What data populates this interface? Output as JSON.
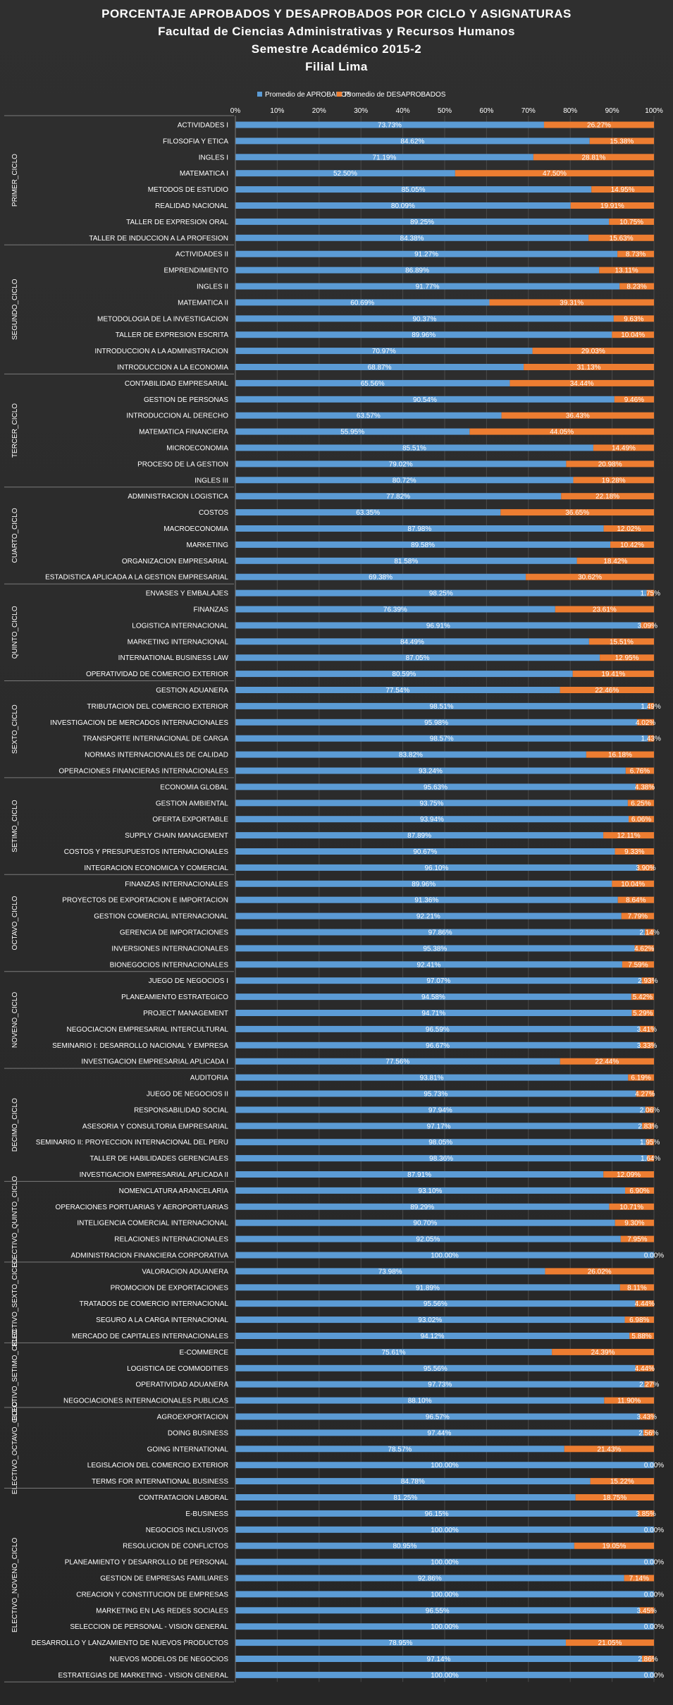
{
  "title_lines": [
    "PORCENTAJE APROBADOS Y DESAPROBADOS POR CICLO Y ASIGNATURAS",
    "Facultad  de Ciencias  Administrativas  y Recursos  Humanos",
    "Semestre  Académico  2015-2",
    "Filial  Lima"
  ],
  "colors": {
    "aprobados": "#5b9bd5",
    "desaprobados": "#ed7d31",
    "background": "#2b2b2b",
    "grid": "#4a4a4a",
    "text": "#ffffff"
  },
  "chart_data": {
    "type": "bar",
    "orientation": "horizontal",
    "stacked": true,
    "legend_position": "top",
    "series": [
      {
        "name": "Promedio de APROBADOS"
      },
      {
        "name": "Promedio de DESAPROBADOS"
      }
    ],
    "xlim": [
      0,
      100
    ],
    "x_ticks": [
      "0%",
      "10%",
      "20%",
      "30%",
      "40%",
      "50%",
      "60%",
      "70%",
      "80%",
      "90%",
      "100%"
    ],
    "grid": true,
    "groups": [
      {
        "name": "PRIMER_CICLO",
        "items": [
          {
            "label": "ACTIVIDADES I",
            "aprobados": 73.73,
            "desaprobados": 26.27
          },
          {
            "label": "FILOSOFIA Y ETICA",
            "aprobados": 84.62,
            "desaprobados": 15.38
          },
          {
            "label": "INGLES I",
            "aprobados": 71.19,
            "desaprobados": 28.81
          },
          {
            "label": "MATEMATICA I",
            "aprobados": 52.5,
            "desaprobados": 47.5
          },
          {
            "label": "METODOS DE ESTUDIO",
            "aprobados": 85.05,
            "desaprobados": 14.95
          },
          {
            "label": "REALIDAD NACIONAL",
            "aprobados": 80.09,
            "desaprobados": 19.91
          },
          {
            "label": "TALLER DE EXPRESION ORAL",
            "aprobados": 89.25,
            "desaprobados": 10.75
          },
          {
            "label": "TALLER DE INDUCCION A LA PROFESION",
            "aprobados": 84.38,
            "desaprobados": 15.63
          }
        ]
      },
      {
        "name": "SEGUNDO_CICLO",
        "items": [
          {
            "label": "ACTIVIDADES II",
            "aprobados": 91.27,
            "desaprobados": 8.73
          },
          {
            "label": "EMPRENDIMIENTO",
            "aprobados": 86.89,
            "desaprobados": 13.11
          },
          {
            "label": "INGLES II",
            "aprobados": 91.77,
            "desaprobados": 8.23
          },
          {
            "label": "MATEMATICA II",
            "aprobados": 60.69,
            "desaprobados": 39.31
          },
          {
            "label": "METODOLOGIA DE LA INVESTIGACION",
            "aprobados": 90.37,
            "desaprobados": 9.63
          },
          {
            "label": "TALLER DE EXPRESION ESCRITA",
            "aprobados": 89.96,
            "desaprobados": 10.04
          },
          {
            "label": "INTRODUCCION A LA ADMINISTRACION",
            "aprobados": 70.97,
            "desaprobados": 29.03
          },
          {
            "label": "INTRODUCCION A LA ECONOMIA",
            "aprobados": 68.87,
            "desaprobados": 31.13
          }
        ]
      },
      {
        "name": "TERCER_CICLO",
        "items": [
          {
            "label": "CONTABILIDAD EMPRESARIAL",
            "aprobados": 65.56,
            "desaprobados": 34.44
          },
          {
            "label": "GESTION DE PERSONAS",
            "aprobados": 90.54,
            "desaprobados": 9.46
          },
          {
            "label": "INTRODUCCION AL DERECHO",
            "aprobados": 63.57,
            "desaprobados": 36.43
          },
          {
            "label": "MATEMATICA FINANCIERA",
            "aprobados": 55.95,
            "desaprobados": 44.05
          },
          {
            "label": "MICROECONOMIA",
            "aprobados": 85.51,
            "desaprobados": 14.49
          },
          {
            "label": "PROCESO DE LA GESTION",
            "aprobados": 79.02,
            "desaprobados": 20.98
          },
          {
            "label": "INGLES III",
            "aprobados": 80.72,
            "desaprobados": 19.28
          }
        ]
      },
      {
        "name": "CUARTO_CICLO",
        "items": [
          {
            "label": "ADMINISTRACION LOGISTICA",
            "aprobados": 77.82,
            "desaprobados": 22.18
          },
          {
            "label": "COSTOS",
            "aprobados": 63.35,
            "desaprobados": 36.65
          },
          {
            "label": "MACROECONOMIA",
            "aprobados": 87.98,
            "desaprobados": 12.02
          },
          {
            "label": "MARKETING",
            "aprobados": 89.58,
            "desaprobados": 10.42
          },
          {
            "label": "ORGANIZACION EMPRESARIAL",
            "aprobados": 81.58,
            "desaprobados": 18.42
          },
          {
            "label": "ESTADISTICA APLICADA A LA GESTION EMPRESARIAL",
            "aprobados": 69.38,
            "desaprobados": 30.62
          }
        ]
      },
      {
        "name": "QUINTO_CICLO",
        "items": [
          {
            "label": "ENVASES Y EMBALAJES",
            "aprobados": 98.25,
            "desaprobados": 1.75
          },
          {
            "label": "FINANZAS",
            "aprobados": 76.39,
            "desaprobados": 23.61
          },
          {
            "label": "LOGISTICA INTERNACIONAL",
            "aprobados": 96.91,
            "desaprobados": 3.09
          },
          {
            "label": "MARKETING INTERNACIONAL",
            "aprobados": 84.49,
            "desaprobados": 15.51
          },
          {
            "label": "INTERNATIONAL BUSINESS LAW",
            "aprobados": 87.05,
            "desaprobados": 12.95
          },
          {
            "label": "OPERATIVIDAD DE COMERCIO EXTERIOR",
            "aprobados": 80.59,
            "desaprobados": 19.41
          }
        ]
      },
      {
        "name": "SEXTO_CICLO",
        "items": [
          {
            "label": "GESTION ADUANERA",
            "aprobados": 77.54,
            "desaprobados": 22.46
          },
          {
            "label": "TRIBUTACION DEL COMERCIO EXTERIOR",
            "aprobados": 98.51,
            "desaprobados": 1.49
          },
          {
            "label": "INVESTIGACION DE MERCADOS INTERNACIONALES",
            "aprobados": 95.98,
            "desaprobados": 4.02
          },
          {
            "label": "TRANSPORTE INTERNACIONAL DE CARGA",
            "aprobados": 98.57,
            "desaprobados": 1.43
          },
          {
            "label": "NORMAS INTERNACIONALES DE CALIDAD",
            "aprobados": 83.82,
            "desaprobados": 16.18
          },
          {
            "label": "OPERACIONES FINANCIERAS INTERNACIONALES",
            "aprobados": 93.24,
            "desaprobados": 6.76
          }
        ]
      },
      {
        "name": "SETIMO_CICLO",
        "items": [
          {
            "label": "ECONOMIA GLOBAL",
            "aprobados": 95.63,
            "desaprobados": 4.38
          },
          {
            "label": "GESTION AMBIENTAL",
            "aprobados": 93.75,
            "desaprobados": 6.25
          },
          {
            "label": "OFERTA EXPORTABLE",
            "aprobados": 93.94,
            "desaprobados": 6.06
          },
          {
            "label": "SUPPLY CHAIN MANAGEMENT",
            "aprobados": 87.89,
            "desaprobados": 12.11
          },
          {
            "label": "COSTOS Y PRESUPUESTOS INTERNACIONALES",
            "aprobados": 90.67,
            "desaprobados": 9.33
          },
          {
            "label": "INTEGRACION ECONOMICA Y COMERCIAL",
            "aprobados": 96.1,
            "desaprobados": 3.9
          }
        ]
      },
      {
        "name": "OCTAVO_CICLO",
        "items": [
          {
            "label": "FINANZAS INTERNACIONALES",
            "aprobados": 89.96,
            "desaprobados": 10.04
          },
          {
            "label": "PROYECTOS DE EXPORTACION E IMPORTACION",
            "aprobados": 91.36,
            "desaprobados": 8.64
          },
          {
            "label": "GESTION COMERCIAL INTERNACIONAL",
            "aprobados": 92.21,
            "desaprobados": 7.79
          },
          {
            "label": "GERENCIA DE IMPORTACIONES",
            "aprobados": 97.86,
            "desaprobados": 2.14
          },
          {
            "label": "INVERSIONES INTERNACIONALES",
            "aprobados": 95.38,
            "desaprobados": 4.62
          },
          {
            "label": "BIONEGOCIOS INTERNACIONALES",
            "aprobados": 92.41,
            "desaprobados": 7.59
          }
        ]
      },
      {
        "name": "NOVENO_CICLO",
        "items": [
          {
            "label": "JUEGO DE NEGOCIOS I",
            "aprobados": 97.07,
            "desaprobados": 2.93
          },
          {
            "label": "PLANEAMIENTO ESTRATEGICO",
            "aprobados": 94.58,
            "desaprobados": 5.42
          },
          {
            "label": "PROJECT MANAGEMENT",
            "aprobados": 94.71,
            "desaprobados": 5.29
          },
          {
            "label": "NEGOCIACION EMPRESARIAL INTERCULTURAL",
            "aprobados": 96.59,
            "desaprobados": 3.41
          },
          {
            "label": "SEMINARIO I: DESARROLLO NACIONAL Y EMPRESA",
            "aprobados": 96.67,
            "desaprobados": 3.33
          },
          {
            "label": "INVESTIGACION EMPRESARIAL APLICADA I",
            "aprobados": 77.56,
            "desaprobados": 22.44
          }
        ]
      },
      {
        "name": "DECIMO_CICLO",
        "items": [
          {
            "label": "AUDITORIA",
            "aprobados": 93.81,
            "desaprobados": 6.19
          },
          {
            "label": "JUEGO DE NEGOCIOS II",
            "aprobados": 95.73,
            "desaprobados": 4.27
          },
          {
            "label": "RESPONSABILIDAD SOCIAL",
            "aprobados": 97.94,
            "desaprobados": 2.06
          },
          {
            "label": "ASESORIA Y CONSULTORIA EMPRESARIAL",
            "aprobados": 97.17,
            "desaprobados": 2.83
          },
          {
            "label": "SEMINARIO II: PROYECCION INTERNACIONAL DEL PERU",
            "aprobados": 98.05,
            "desaprobados": 1.95
          },
          {
            "label": "TALLER DE HABILIDADES GERENCIALES",
            "aprobados": 98.36,
            "desaprobados": 1.64
          },
          {
            "label": "INVESTIGACION EMPRESARIAL APLICADA II",
            "aprobados": 87.91,
            "desaprobados": 12.09
          }
        ]
      },
      {
        "name": "ELECTIVO_QUINTO_CICLO",
        "items": [
          {
            "label": "NOMENCLATURA ARANCELARIA",
            "aprobados": 93.1,
            "desaprobados": 6.9
          },
          {
            "label": "OPERACIONES PORTUARIAS Y AEROPORTUARIAS",
            "aprobados": 89.29,
            "desaprobados": 10.71
          },
          {
            "label": "INTELIGENCIA COMERCIAL INTERNACIONAL",
            "aprobados": 90.7,
            "desaprobados": 9.3
          },
          {
            "label": "RELACIONES INTERNACIONALES",
            "aprobados": 92.05,
            "desaprobados": 7.95
          },
          {
            "label": "ADMINISTRACION FINANCIERA CORPORATIVA",
            "aprobados": 100.0,
            "desaprobados": 0.0
          }
        ]
      },
      {
        "name": "ELECTIVO_SEXTO_CICLO",
        "items": [
          {
            "label": "VALORACION ADUANERA",
            "aprobados": 73.98,
            "desaprobados": 26.02
          },
          {
            "label": "PROMOCION DE EXPORTACIONES",
            "aprobados": 91.89,
            "desaprobados": 8.11
          },
          {
            "label": "TRATADOS DE COMERCIO INTERNACIONAL",
            "aprobados": 95.56,
            "desaprobados": 4.44
          },
          {
            "label": "SEGURO A LA CARGA INTERNACIONAL",
            "aprobados": 93.02,
            "desaprobados": 6.98
          },
          {
            "label": "MERCADO DE CAPITALES INTERNACIONALES",
            "aprobados": 94.12,
            "desaprobados": 5.88
          }
        ]
      },
      {
        "name": "ELECTIVO_SETIMO_CICLO",
        "items": [
          {
            "label": "E-COMMERCE",
            "aprobados": 75.61,
            "desaprobados": 24.39
          },
          {
            "label": "LOGISTICA DE COMMODITIES",
            "aprobados": 95.56,
            "desaprobados": 4.44
          },
          {
            "label": "OPERATIVIDAD ADUANERA",
            "aprobados": 97.73,
            "desaprobados": 2.27
          },
          {
            "label": "NEGOCIACIONES INTERNACIONALES PUBLICAS",
            "aprobados": 88.1,
            "desaprobados": 11.9
          }
        ]
      },
      {
        "name": "ELECTIVO_OCTAVO_CICLO",
        "items": [
          {
            "label": "AGROEXPORTACION",
            "aprobados": 96.57,
            "desaprobados": 3.43
          },
          {
            "label": "DOING BUSINESS",
            "aprobados": 97.44,
            "desaprobados": 2.56
          },
          {
            "label": "GOING INTERNATIONAL",
            "aprobados": 78.57,
            "desaprobados": 21.43
          },
          {
            "label": "LEGISLACION DEL COMERCIO EXTERIOR",
            "aprobados": 100.0,
            "desaprobados": 0.0
          },
          {
            "label": "TERMS FOR INTERNATIONAL BUSINESS",
            "aprobados": 84.78,
            "desaprobados": 15.22
          }
        ]
      },
      {
        "name": "ELECTIVO_NOVENO_CICLO",
        "items": [
          {
            "label": "CONTRATACION LABORAL",
            "aprobados": 81.25,
            "desaprobados": 18.75
          },
          {
            "label": "E-BUSINESS",
            "aprobados": 96.15,
            "desaprobados": 3.85
          },
          {
            "label": "NEGOCIOS INCLUSIVOS",
            "aprobados": 100.0,
            "desaprobados": 0.0
          },
          {
            "label": "RESOLUCION DE CONFLICTOS",
            "aprobados": 80.95,
            "desaprobados": 19.05
          },
          {
            "label": "PLANEAMIENTO Y DESARROLLO DE PERSONAL",
            "aprobados": 100.0,
            "desaprobados": 0.0
          },
          {
            "label": "GESTION DE EMPRESAS FAMILIARES",
            "aprobados": 92.86,
            "desaprobados": 7.14
          },
          {
            "label": "CREACION Y CONSTITUCION DE EMPRESAS",
            "aprobados": 100.0,
            "desaprobados": 0.0
          },
          {
            "label": "MARKETING EN LAS REDES SOCIALES",
            "aprobados": 96.55,
            "desaprobados": 3.45
          },
          {
            "label": "SELECCION DE PERSONAL - VISION GENERAL",
            "aprobados": 100.0,
            "desaprobados": 0.0
          },
          {
            "label": "DESARROLLO Y LANZAMIENTO DE NUEVOS PRODUCTOS",
            "aprobados": 78.95,
            "desaprobados": 21.05
          },
          {
            "label": "NUEVOS MODELOS DE NEGOCIOS",
            "aprobados": 97.14,
            "desaprobados": 2.86
          },
          {
            "label": "ESTRATEGIAS DE MARKETING - VISION GENERAL",
            "aprobados": 100.0,
            "desaprobados": 0.0
          }
        ]
      }
    ]
  }
}
